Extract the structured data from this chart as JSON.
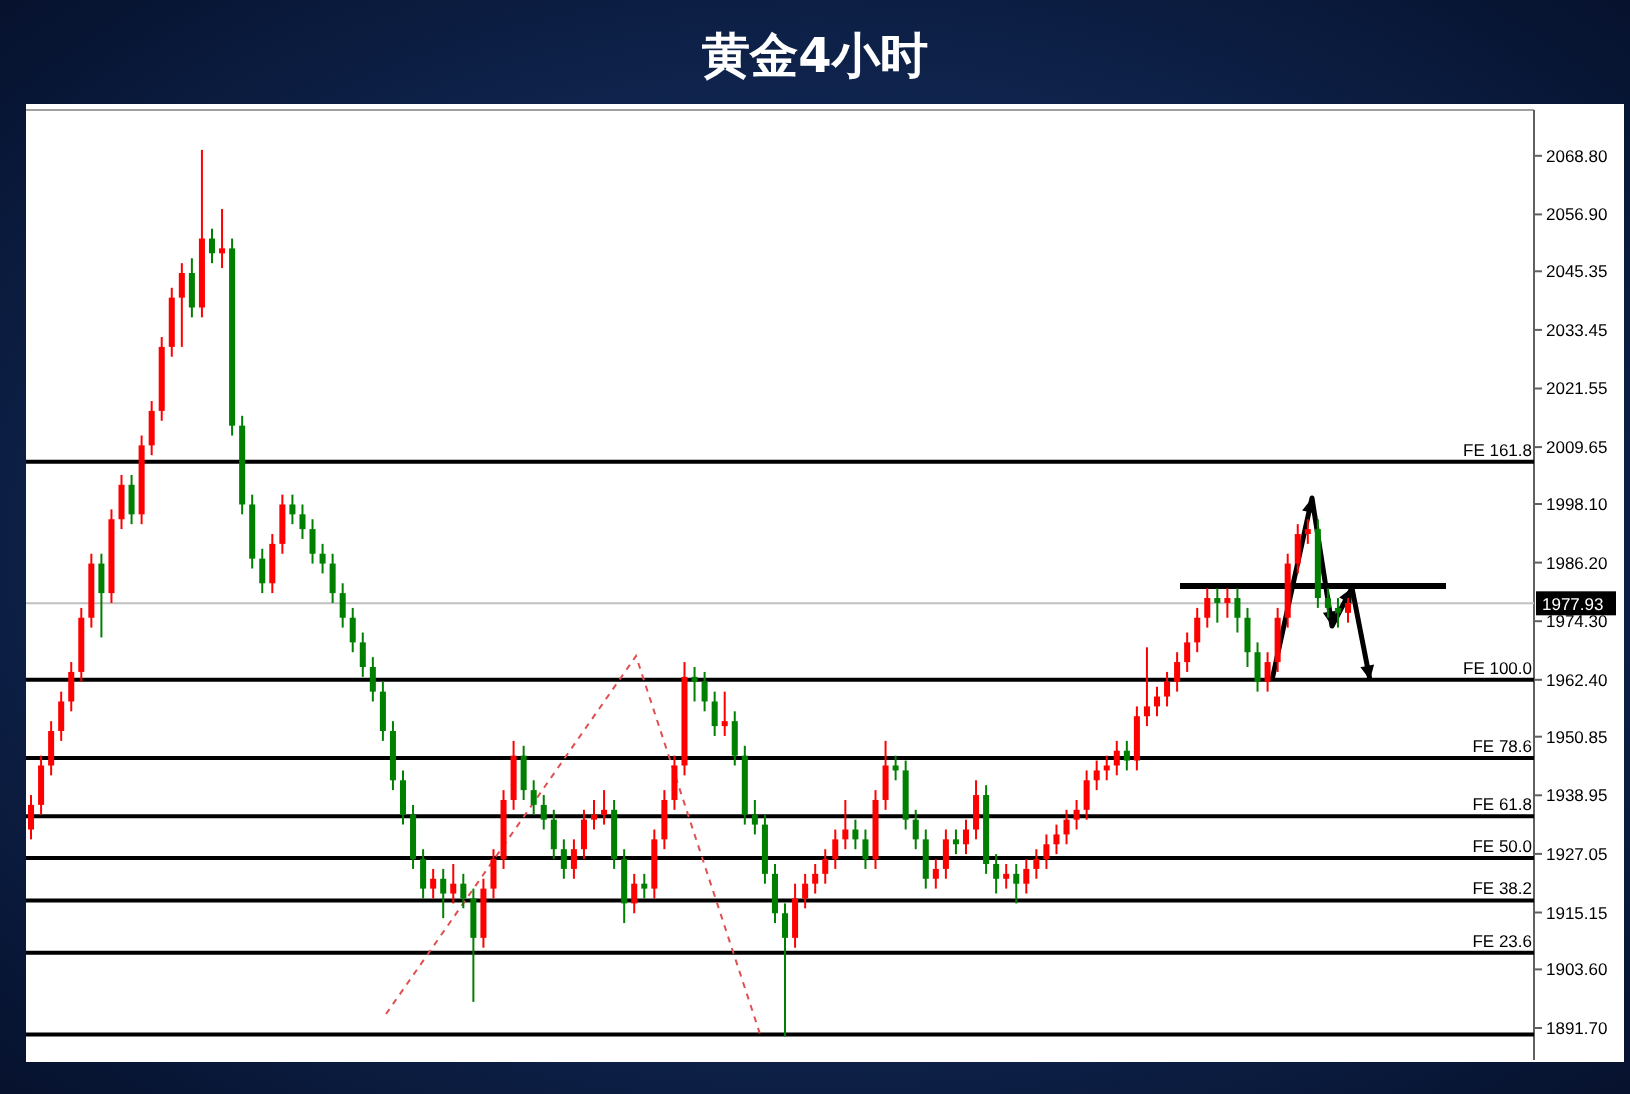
{
  "chart_data": {
    "type": "candlestick",
    "title": "黄金4小时",
    "categories": [
      null,
      null,
      null,
      null,
      null,
      null,
      null,
      null,
      null,
      null,
      null,
      null,
      null,
      null,
      null,
      null,
      null,
      null,
      null,
      null,
      null,
      null,
      null,
      null,
      null,
      null,
      null,
      null,
      null,
      null,
      null,
      null,
      null,
      null,
      null,
      null,
      null,
      null,
      null,
      null,
      null,
      null,
      null,
      null,
      null,
      null,
      null,
      null,
      null,
      null,
      null,
      null,
      null,
      null,
      null,
      null,
      null,
      null,
      null,
      null,
      null,
      null,
      null,
      null,
      null,
      null,
      null,
      null,
      null,
      null,
      null,
      null,
      null,
      null,
      null,
      null,
      null,
      null,
      null,
      null,
      null,
      null,
      null,
      null,
      null,
      null,
      null,
      null,
      null,
      null,
      null,
      null,
      null,
      null,
      null,
      null,
      null,
      null,
      null,
      null,
      null,
      null,
      null,
      null,
      null,
      null,
      null,
      null,
      null,
      null,
      null,
      null,
      null,
      null,
      null,
      null,
      null,
      null,
      null,
      null,
      null,
      null,
      null,
      null,
      null,
      null,
      null,
      null,
      null,
      null,
      null,
      null,
      null,
      null,
      null,
      null,
      null,
      null,
      null,
      null,
      null,
      null,
      null,
      null,
      null,
      null,
      null,
      null,
      null,
      null
    ],
    "ohlc": [
      [
        1932,
        1939,
        1930,
        1937
      ],
      [
        1937,
        1947,
        1935,
        1945
      ],
      [
        1945,
        1954,
        1943,
        1952
      ],
      [
        1952,
        1960,
        1950,
        1958
      ],
      [
        1958,
        1966,
        1956,
        1964
      ],
      [
        1964,
        1977,
        1962,
        1975
      ],
      [
        1975,
        1988,
        1973,
        1986
      ],
      [
        1986,
        1988,
        1971,
        1980
      ],
      [
        1980,
        1997,
        1978,
        1995
      ],
      [
        1995,
        2004,
        1993,
        2002
      ],
      [
        2002,
        2004,
        1994,
        1996
      ],
      [
        1996,
        2012,
        1994,
        2010
      ],
      [
        2010,
        2019,
        2008,
        2017
      ],
      [
        2017,
        2032,
        2015,
        2030
      ],
      [
        2030,
        2042,
        2028,
        2040
      ],
      [
        2040,
        2047,
        2030,
        2045
      ],
      [
        2045,
        2048,
        2036,
        2038
      ],
      [
        2038,
        2070,
        2036,
        2052
      ],
      [
        2052,
        2054,
        2047,
        2049
      ],
      [
        2049,
        2058,
        2046,
        2050
      ],
      [
        2050,
        2052,
        2012,
        2014
      ],
      [
        2014,
        2016,
        1996,
        1998
      ],
      [
        1998,
        2000,
        1985,
        1987
      ],
      [
        1987,
        1989,
        1980,
        1982
      ],
      [
        1982,
        1992,
        1980,
        1990
      ],
      [
        1990,
        2000,
        1988,
        1998
      ],
      [
        1998,
        2000,
        1994,
        1996
      ],
      [
        1996,
        1998,
        1991,
        1993
      ],
      [
        1993,
        1995,
        1986,
        1988
      ],
      [
        1988,
        1990,
        1984,
        1986
      ],
      [
        1986,
        1988,
        1978,
        1980
      ],
      [
        1980,
        1982,
        1973,
        1975
      ],
      [
        1975,
        1977,
        1968,
        1970
      ],
      [
        1970,
        1972,
        1963,
        1965
      ],
      [
        1965,
        1967,
        1958,
        1960
      ],
      [
        1960,
        1962,
        1950,
        1952
      ],
      [
        1952,
        1954,
        1940,
        1942
      ],
      [
        1942,
        1944,
        1933,
        1935
      ],
      [
        1935,
        1937,
        1924,
        1926
      ],
      [
        1926,
        1928,
        1918,
        1920
      ],
      [
        1920,
        1924,
        1918,
        1922
      ],
      [
        1922,
        1924,
        1914,
        1919
      ],
      [
        1919,
        1925,
        1917,
        1921
      ],
      [
        1921,
        1923,
        1916,
        1918
      ],
      [
        1918,
        1920,
        1897,
        1910
      ],
      [
        1910,
        1922,
        1908,
        1920
      ],
      [
        1920,
        1928,
        1918,
        1926
      ],
      [
        1926,
        1940,
        1924,
        1938
      ],
      [
        1938,
        1950,
        1936,
        1947
      ],
      [
        1947,
        1949,
        1938,
        1940
      ],
      [
        1940,
        1942,
        1935,
        1937
      ],
      [
        1937,
        1939,
        1932,
        1934
      ],
      [
        1934,
        1936,
        1926,
        1928
      ],
      [
        1928,
        1930,
        1922,
        1924
      ],
      [
        1924,
        1930,
        1922,
        1928
      ],
      [
        1928,
        1936,
        1926,
        1934
      ],
      [
        1934,
        1938,
        1932,
        1935
      ],
      [
        1935,
        1940,
        1933,
        1936
      ],
      [
        1936,
        1938,
        1924,
        1926
      ],
      [
        1926,
        1928,
        1913,
        1917
      ],
      [
        1917,
        1923,
        1915,
        1921
      ],
      [
        1921,
        1923,
        1918,
        1920
      ],
      [
        1920,
        1932,
        1918,
        1930
      ],
      [
        1930,
        1940,
        1928,
        1938
      ],
      [
        1938,
        1947,
        1936,
        1945
      ],
      [
        1945,
        1966,
        1943,
        1963
      ],
      [
        1963,
        1965,
        1958,
        1962
      ],
      [
        1962,
        1964,
        1956,
        1958
      ],
      [
        1958,
        1960,
        1951,
        1953
      ],
      [
        1953,
        1960,
        1951,
        1954
      ],
      [
        1954,
        1956,
        1945,
        1947
      ],
      [
        1947,
        1949,
        1933,
        1935
      ],
      [
        1935,
        1938,
        1931,
        1933
      ],
      [
        1933,
        1935,
        1921,
        1923
      ],
      [
        1923,
        1925,
        1913,
        1915
      ],
      [
        1915,
        1917,
        1890,
        1910
      ],
      [
        1910,
        1921,
        1908,
        1918
      ],
      [
        1918,
        1923,
        1916,
        1921
      ],
      [
        1921,
        1925,
        1919,
        1923
      ],
      [
        1923,
        1928,
        1921,
        1926
      ],
      [
        1926,
        1932,
        1924,
        1930
      ],
      [
        1930,
        1938,
        1928,
        1932
      ],
      [
        1932,
        1934,
        1928,
        1930
      ],
      [
        1930,
        1932,
        1924,
        1926
      ],
      [
        1926,
        1940,
        1924,
        1938
      ],
      [
        1938,
        1950,
        1936,
        1945
      ],
      [
        1945,
        1947,
        1942,
        1944
      ],
      [
        1944,
        1946,
        1932,
        1934
      ],
      [
        1934,
        1936,
        1928,
        1930
      ],
      [
        1930,
        1932,
        1920,
        1922
      ],
      [
        1922,
        1926,
        1920,
        1924
      ],
      [
        1924,
        1932,
        1922,
        1930
      ],
      [
        1930,
        1932,
        1927,
        1929
      ],
      [
        1929,
        1934,
        1927,
        1932
      ],
      [
        1932,
        1942,
        1930,
        1939
      ],
      [
        1939,
        1941,
        1923,
        1925
      ],
      [
        1925,
        1927,
        1919,
        1922
      ],
      [
        1922,
        1925,
        1920,
        1923
      ],
      [
        1923,
        1925,
        1917,
        1921
      ],
      [
        1921,
        1926,
        1919,
        1924
      ],
      [
        1924,
        1928,
        1922,
        1926
      ],
      [
        1926,
        1931,
        1924,
        1929
      ],
      [
        1929,
        1933,
        1927,
        1931
      ],
      [
        1931,
        1936,
        1929,
        1934
      ],
      [
        1934,
        1938,
        1932,
        1936
      ],
      [
        1936,
        1944,
        1934,
        1942
      ],
      [
        1942,
        1946,
        1940,
        1944
      ],
      [
        1944,
        1947,
        1942,
        1945
      ],
      [
        1945,
        1950,
        1943,
        1948
      ],
      [
        1948,
        1950,
        1944,
        1946
      ],
      [
        1946,
        1957,
        1944,
        1955
      ],
      [
        1955,
        1969,
        1953,
        1957
      ],
      [
        1957,
        1961,
        1955,
        1959
      ],
      [
        1959,
        1964,
        1957,
        1962
      ],
      [
        1962,
        1968,
        1960,
        1966
      ],
      [
        1966,
        1972,
        1964,
        1970
      ],
      [
        1970,
        1977,
        1968,
        1975
      ],
      [
        1975,
        1981,
        1973,
        1979
      ],
      [
        1979,
        1981,
        1974,
        1978
      ],
      [
        1978,
        1981,
        1975,
        1979
      ],
      [
        1979,
        1981,
        1972,
        1975
      ],
      [
        1975,
        1977,
        1965,
        1968
      ],
      [
        1968,
        1970,
        1960,
        1962
      ],
      [
        1962,
        1968,
        1960,
        1966
      ],
      [
        1966,
        1977,
        1964,
        1975
      ],
      [
        1975,
        1988,
        1973,
        1986
      ],
      [
        1986,
        1994,
        1984,
        1992
      ],
      [
        1992,
        1995,
        1990,
        1993
      ],
      [
        1993,
        1995,
        1977,
        1979
      ],
      [
        1979,
        1981,
        1975,
        1977
      ],
      [
        1977,
        1979,
        1973,
        1976
      ],
      [
        1976,
        1979,
        1974,
        1977.93
      ],
      null,
      null,
      null,
      null,
      null,
      null,
      null,
      null,
      null,
      null,
      null,
      null,
      null,
      null,
      null,
      null,
      null,
      null
    ],
    "ylim": [
      1885.2,
      2078.1
    ],
    "yticks": [
      {
        "value": 1891.7,
        "label": "1891.70"
      },
      {
        "value": 1903.6,
        "label": "1903.60"
      },
      {
        "value": 1915.15,
        "label": "1915.15"
      },
      {
        "value": 1927.05,
        "label": "1927.05"
      },
      {
        "value": 1938.95,
        "label": "1938.95"
      },
      {
        "value": 1950.85,
        "label": "1950.85"
      },
      {
        "value": 1962.4,
        "label": "1962.40"
      },
      {
        "value": 1974.3,
        "label": "1974.30"
      },
      {
        "value": 1986.2,
        "label": "1986.20"
      },
      {
        "value": 1998.1,
        "label": "1998.10"
      },
      {
        "value": 2009.65,
        "label": "2009.65"
      },
      {
        "value": 2021.55,
        "label": "2021.55"
      },
      {
        "value": 2033.45,
        "label": "2033.45"
      },
      {
        "value": 2045.35,
        "label": "2045.35"
      },
      {
        "value": 2056.9,
        "label": "2056.90"
      },
      {
        "value": 2068.8,
        "label": "2068.80"
      }
    ],
    "tick_labels": "y",
    "ref_lines": [
      {
        "axis": "y",
        "value": 2006.7,
        "label": "FE 161.8",
        "color": "#000000"
      },
      {
        "axis": "y",
        "value": 1962.4,
        "label": "FE 100.0",
        "color": "#000000"
      },
      {
        "axis": "y",
        "value": 1946.5,
        "label": "FE 78.6",
        "color": "#000000"
      },
      {
        "axis": "y",
        "value": 1934.7,
        "label": "FE 61.8",
        "color": "#000000"
      },
      {
        "axis": "y",
        "value": 1926.2,
        "label": "FE 50.0",
        "color": "#000000"
      },
      {
        "axis": "y",
        "value": 1917.6,
        "label": "FE 38.2",
        "color": "#000000"
      },
      {
        "axis": "y",
        "value": 1907.0,
        "label": "FE 23.6",
        "color": "#000000"
      },
      {
        "axis": "y",
        "value": 1890.4,
        "label": null,
        "color": "#000000"
      },
      {
        "axis": "y",
        "value": 1977.93,
        "label": "1977.93",
        "color": "#c0c0c0"
      }
    ]
  }
}
